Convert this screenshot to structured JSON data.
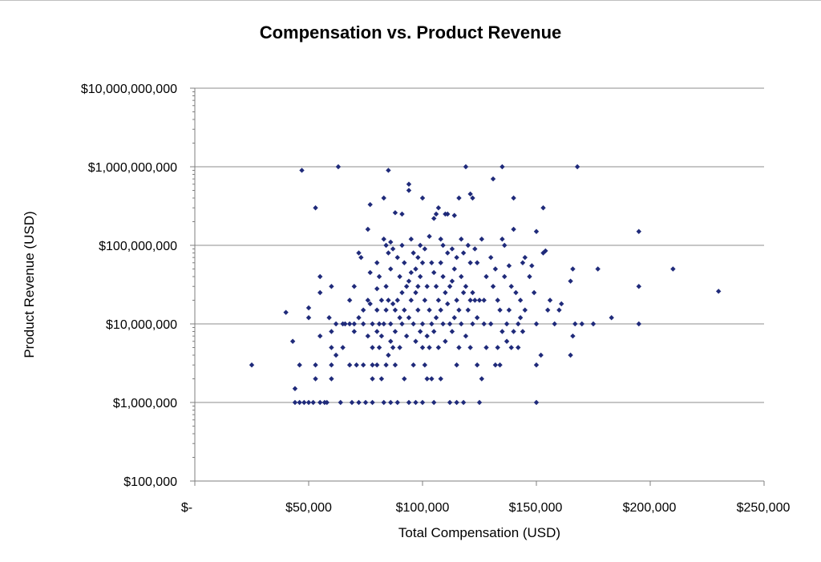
{
  "chart_data": {
    "type": "scatter",
    "title": "Compensation vs. Product Revenue",
    "xlabel": "Total Compensation (USD)",
    "ylabel": "Product Revenue (USD)",
    "xlim": [
      0,
      250000
    ],
    "ylim": [
      100000,
      10000000000
    ],
    "yscale": "log",
    "grid": "horizontal major gridlines",
    "legend": "none",
    "marker_color": "#1f2a7a",
    "x_tick_labels": [
      "$-",
      "$50,000",
      "$100,000",
      "$150,000",
      "$200,000",
      "$250,000"
    ],
    "y_tick_labels": [
      "$10,000,000,000",
      "$1,000,000,000",
      "$100,000,000",
      "$10,000,000",
      "$1,000,000",
      "$100,000"
    ],
    "points": [
      [
        25000,
        3000000
      ],
      [
        40000,
        14000000
      ],
      [
        43000,
        6000000
      ],
      [
        44000,
        1500000
      ],
      [
        44000,
        1000000
      ],
      [
        46000,
        3000000
      ],
      [
        46000,
        1000000
      ],
      [
        47000,
        900000000
      ],
      [
        48000,
        1000000
      ],
      [
        50000,
        16000000
      ],
      [
        50000,
        12000000
      ],
      [
        50000,
        1000000
      ],
      [
        52000,
        1000000
      ],
      [
        53000,
        300000000
      ],
      [
        53000,
        3000000
      ],
      [
        53000,
        2000000
      ],
      [
        55000,
        40000000
      ],
      [
        55000,
        25000000
      ],
      [
        55000,
        7000000
      ],
      [
        55000,
        1000000
      ],
      [
        57000,
        1000000
      ],
      [
        58000,
        1000000
      ],
      [
        59000,
        12000000
      ],
      [
        60000,
        30000000
      ],
      [
        60000,
        8000000
      ],
      [
        60000,
        5000000
      ],
      [
        60000,
        3000000
      ],
      [
        60000,
        2000000
      ],
      [
        62000,
        10000000
      ],
      [
        62000,
        4000000
      ],
      [
        63000,
        1000000000
      ],
      [
        64000,
        1000000
      ],
      [
        65000,
        10000000
      ],
      [
        65000,
        5000000
      ],
      [
        66000,
        10000000
      ],
      [
        68000,
        20000000
      ],
      [
        68000,
        10000000
      ],
      [
        68000,
        3000000
      ],
      [
        69000,
        1000000
      ],
      [
        70000,
        30000000
      ],
      [
        70000,
        10000000
      ],
      [
        70000,
        8000000
      ],
      [
        71000,
        3000000
      ],
      [
        72000,
        80000000
      ],
      [
        72000,
        12000000
      ],
      [
        72000,
        1000000
      ],
      [
        73000,
        70000000
      ],
      [
        74000,
        15000000
      ],
      [
        74000,
        10000000
      ],
      [
        74000,
        3000000
      ],
      [
        75000,
        1000000
      ],
      [
        76000,
        160000000
      ],
      [
        76000,
        20000000
      ],
      [
        76000,
        7000000
      ],
      [
        77000,
        330000000
      ],
      [
        77000,
        45000000
      ],
      [
        77000,
        18000000
      ],
      [
        78000,
        10000000
      ],
      [
        78000,
        5000000
      ],
      [
        78000,
        3000000
      ],
      [
        78000,
        2000000
      ],
      [
        78000,
        1000000
      ],
      [
        80000,
        60000000
      ],
      [
        80000,
        28000000
      ],
      [
        80000,
        15000000
      ],
      [
        80000,
        8000000
      ],
      [
        80000,
        3000000
      ],
      [
        81000,
        40000000
      ],
      [
        81000,
        10000000
      ],
      [
        81000,
        5000000
      ],
      [
        82000,
        20000000
      ],
      [
        82000,
        7000000
      ],
      [
        82000,
        2000000
      ],
      [
        83000,
        400000000
      ],
      [
        83000,
        120000000
      ],
      [
        83000,
        10000000
      ],
      [
        83000,
        1000000
      ],
      [
        84000,
        100000000
      ],
      [
        84000,
        30000000
      ],
      [
        84000,
        15000000
      ],
      [
        84000,
        3000000
      ],
      [
        85000,
        900000000
      ],
      [
        85000,
        80000000
      ],
      [
        85000,
        20000000
      ],
      [
        85000,
        4000000
      ],
      [
        86000,
        110000000
      ],
      [
        86000,
        50000000
      ],
      [
        86000,
        10000000
      ],
      [
        86000,
        6000000
      ],
      [
        86000,
        1000000
      ],
      [
        87000,
        90000000
      ],
      [
        87000,
        18000000
      ],
      [
        87000,
        5000000
      ],
      [
        88000,
        260000000
      ],
      [
        88000,
        15000000
      ],
      [
        88000,
        8000000
      ],
      [
        88000,
        3000000
      ],
      [
        89000,
        70000000
      ],
      [
        89000,
        20000000
      ],
      [
        89000,
        1000000
      ],
      [
        90000,
        40000000
      ],
      [
        90000,
        12000000
      ],
      [
        90000,
        5000000
      ],
      [
        91000,
        250000000
      ],
      [
        91000,
        100000000
      ],
      [
        91000,
        25000000
      ],
      [
        91000,
        10000000
      ],
      [
        92000,
        60000000
      ],
      [
        92000,
        15000000
      ],
      [
        92000,
        2000000
      ],
      [
        93000,
        30000000
      ],
      [
        93000,
        7000000
      ],
      [
        94000,
        600000000
      ],
      [
        94000,
        500000000
      ],
      [
        94000,
        35000000
      ],
      [
        94000,
        12000000
      ],
      [
        94000,
        1000000
      ],
      [
        95000,
        120000000
      ],
      [
        95000,
        45000000
      ],
      [
        95000,
        20000000
      ],
      [
        96000,
        80000000
      ],
      [
        96000,
        10000000
      ],
      [
        96000,
        3000000
      ],
      [
        97000,
        50000000
      ],
      [
        97000,
        25000000
      ],
      [
        97000,
        6000000
      ],
      [
        97000,
        1000000
      ],
      [
        98000,
        70000000
      ],
      [
        98000,
        30000000
      ],
      [
        98000,
        15000000
      ],
      [
        99000,
        100000000
      ],
      [
        99000,
        40000000
      ],
      [
        99000,
        8000000
      ],
      [
        100000,
        400000000
      ],
      [
        100000,
        60000000
      ],
      [
        100000,
        10000000
      ],
      [
        100000,
        5000000
      ],
      [
        100000,
        1000000
      ],
      [
        101000,
        90000000
      ],
      [
        101000,
        20000000
      ],
      [
        101000,
        3000000
      ],
      [
        102000,
        30000000
      ],
      [
        102000,
        7000000
      ],
      [
        102000,
        2000000
      ],
      [
        103000,
        130000000
      ],
      [
        103000,
        15000000
      ],
      [
        103000,
        5000000
      ],
      [
        104000,
        60000000
      ],
      [
        104000,
        10000000
      ],
      [
        104000,
        2000000
      ],
      [
        105000,
        220000000
      ],
      [
        105000,
        45000000
      ],
      [
        105000,
        8000000
      ],
      [
        105000,
        1000000
      ],
      [
        106000,
        250000000
      ],
      [
        106000,
        30000000
      ],
      [
        106000,
        12000000
      ],
      [
        107000,
        300000000
      ],
      [
        107000,
        20000000
      ],
      [
        107000,
        5000000
      ],
      [
        108000,
        120000000
      ],
      [
        108000,
        60000000
      ],
      [
        108000,
        15000000
      ],
      [
        108000,
        2000000
      ],
      [
        109000,
        100000000
      ],
      [
        109000,
        40000000
      ],
      [
        109000,
        10000000
      ],
      [
        110000,
        250000000
      ],
      [
        110000,
        25000000
      ],
      [
        110000,
        6000000
      ],
      [
        111000,
        250000000
      ],
      [
        111000,
        80000000
      ],
      [
        111000,
        18000000
      ],
      [
        112000,
        30000000
      ],
      [
        112000,
        10000000
      ],
      [
        112000,
        1000000
      ],
      [
        113000,
        90000000
      ],
      [
        113000,
        35000000
      ],
      [
        113000,
        8000000
      ],
      [
        114000,
        240000000
      ],
      [
        114000,
        50000000
      ],
      [
        114000,
        12000000
      ],
      [
        115000,
        70000000
      ],
      [
        115000,
        20000000
      ],
      [
        115000,
        3000000
      ],
      [
        115000,
        1000000
      ],
      [
        116000,
        400000000
      ],
      [
        116000,
        15000000
      ],
      [
        116000,
        5000000
      ],
      [
        117000,
        120000000
      ],
      [
        117000,
        40000000
      ],
      [
        117000,
        10000000
      ],
      [
        118000,
        80000000
      ],
      [
        118000,
        25000000
      ],
      [
        118000,
        1000000
      ],
      [
        119000,
        1000000000
      ],
      [
        119000,
        30000000
      ],
      [
        119000,
        7000000
      ],
      [
        120000,
        100000000
      ],
      [
        120000,
        15000000
      ],
      [
        121000,
        450000000
      ],
      [
        121000,
        60000000
      ],
      [
        121000,
        20000000
      ],
      [
        121000,
        5000000
      ],
      [
        122000,
        400000000
      ],
      [
        122000,
        25000000
      ],
      [
        122000,
        10000000
      ],
      [
        123000,
        90000000
      ],
      [
        123000,
        20000000
      ],
      [
        124000,
        60000000
      ],
      [
        124000,
        12000000
      ],
      [
        124000,
        3000000
      ],
      [
        125000,
        20000000
      ],
      [
        125000,
        1000000
      ],
      [
        126000,
        2000000
      ],
      [
        126000,
        120000000
      ],
      [
        127000,
        20000000
      ],
      [
        127000,
        10000000
      ],
      [
        128000,
        40000000
      ],
      [
        128000,
        5000000
      ],
      [
        130000,
        70000000
      ],
      [
        130000,
        10000000
      ],
      [
        131000,
        700000000
      ],
      [
        131000,
        30000000
      ],
      [
        132000,
        50000000
      ],
      [
        132000,
        3000000
      ],
      [
        133000,
        20000000
      ],
      [
        133000,
        5000000
      ],
      [
        134000,
        15000000
      ],
      [
        134000,
        3000000
      ],
      [
        135000,
        1000000000
      ],
      [
        135000,
        120000000
      ],
      [
        135000,
        8000000
      ],
      [
        136000,
        100000000
      ],
      [
        136000,
        40000000
      ],
      [
        137000,
        10000000
      ],
      [
        137000,
        6000000
      ],
      [
        138000,
        55000000
      ],
      [
        138000,
        15000000
      ],
      [
        139000,
        30000000
      ],
      [
        139000,
        5000000
      ],
      [
        140000,
        400000000
      ],
      [
        140000,
        160000000
      ],
      [
        140000,
        8000000
      ],
      [
        141000,
        25000000
      ],
      [
        142000,
        10000000
      ],
      [
        142000,
        5000000
      ],
      [
        143000,
        20000000
      ],
      [
        143000,
        12000000
      ],
      [
        144000,
        60000000
      ],
      [
        144000,
        8000000
      ],
      [
        145000,
        70000000
      ],
      [
        145000,
        15000000
      ],
      [
        147000,
        40000000
      ],
      [
        148000,
        55000000
      ],
      [
        149000,
        25000000
      ],
      [
        150000,
        150000000
      ],
      [
        150000,
        10000000
      ],
      [
        150000,
        3000000
      ],
      [
        150000,
        1000000
      ],
      [
        152000,
        4000000
      ],
      [
        153000,
        300000000
      ],
      [
        153000,
        80000000
      ],
      [
        154000,
        85000000
      ],
      [
        155000,
        15000000
      ],
      [
        156000,
        20000000
      ],
      [
        158000,
        10000000
      ],
      [
        160000,
        15000000
      ],
      [
        161000,
        18000000
      ],
      [
        165000,
        35000000
      ],
      [
        165000,
        4000000
      ],
      [
        166000,
        7000000
      ],
      [
        166000,
        50000000
      ],
      [
        167000,
        10000000
      ],
      [
        168000,
        1000000000
      ],
      [
        170000,
        10000000
      ],
      [
        175000,
        10000000
      ],
      [
        177000,
        50000000
      ],
      [
        183000,
        12000000
      ],
      [
        195000,
        150000000
      ],
      [
        195000,
        30000000
      ],
      [
        195000,
        10000000
      ],
      [
        210000,
        50000000
      ],
      [
        230000,
        26000000
      ]
    ]
  }
}
